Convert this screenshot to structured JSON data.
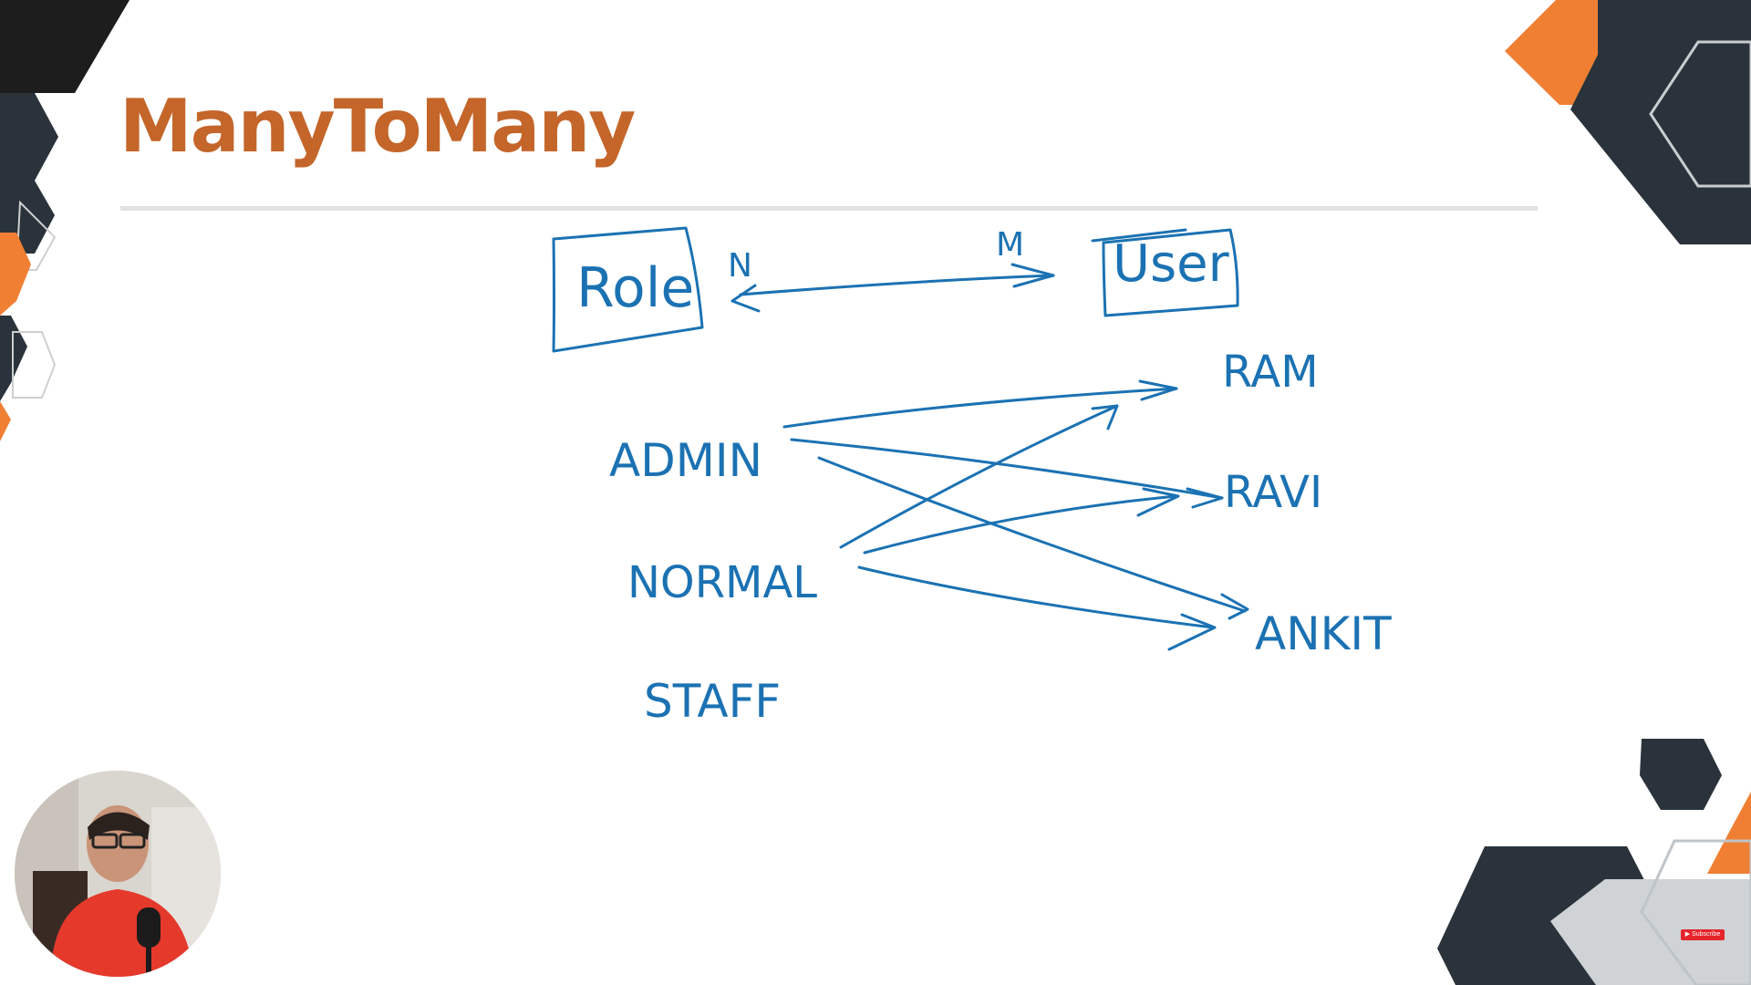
{
  "slide": {
    "title": "ManyToMany",
    "accent_color": "#c4652a",
    "dark_color": "#2a333b",
    "orange_color": "#f07f34",
    "ink_color": "#1b72b3"
  },
  "diagram": {
    "entity_left": "Role",
    "entity_right": "User",
    "cardinality_left": "N",
    "cardinality_right": "M",
    "roles": [
      "ADMIN",
      "NORMAL",
      "STAFF"
    ],
    "users": [
      "RAM",
      "RAVI",
      "ANKIT"
    ],
    "mappings": [
      {
        "from": "ADMIN",
        "to": "RAM"
      },
      {
        "from": "ADMIN",
        "to": "RAVI"
      },
      {
        "from": "ADMIN",
        "to": "ANKIT"
      },
      {
        "from": "NORMAL",
        "to": "RAM"
      },
      {
        "from": "NORMAL",
        "to": "RAVI"
      },
      {
        "from": "NORMAL",
        "to": "ANKIT"
      }
    ]
  },
  "webcam": {
    "icon": "presenter-avatar"
  },
  "badge": {
    "label": "Subscribe",
    "icon": "youtube-icon"
  }
}
